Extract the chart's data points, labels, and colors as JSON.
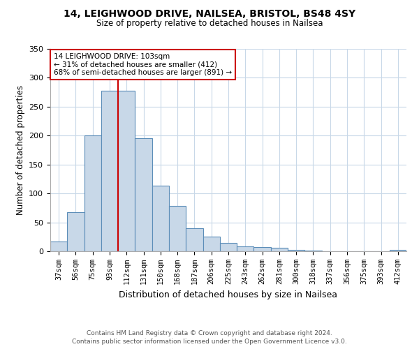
{
  "title1": "14, LEIGHWOOD DRIVE, NAILSEA, BRISTOL, BS48 4SY",
  "title2": "Size of property relative to detached houses in Nailsea",
  "xlabel": "Distribution of detached houses by size in Nailsea",
  "ylabel": "Number of detached properties",
  "categories": [
    "37sqm",
    "56sqm",
    "75sqm",
    "93sqm",
    "112sqm",
    "131sqm",
    "150sqm",
    "168sqm",
    "187sqm",
    "206sqm",
    "225sqm",
    "243sqm",
    "262sqm",
    "281sqm",
    "300sqm",
    "318sqm",
    "337sqm",
    "356sqm",
    "375sqm",
    "393sqm",
    "412sqm"
  ],
  "values": [
    17,
    68,
    200,
    277,
    277,
    195,
    113,
    78,
    40,
    25,
    14,
    9,
    7,
    6,
    3,
    1,
    0,
    0,
    0,
    0,
    3
  ],
  "bar_color": "#c8d8e8",
  "bar_edge_color": "#5b8db8",
  "marker_bin_index": 3,
  "marker_color": "#cc0000",
  "annotation_text": "14 LEIGHWOOD DRIVE: 103sqm\n← 31% of detached houses are smaller (412)\n68% of semi-detached houses are larger (891) →",
  "annotation_box_color": "#ffffff",
  "annotation_box_edge": "#cc0000",
  "ylim": [
    0,
    350
  ],
  "yticks": [
    0,
    50,
    100,
    150,
    200,
    250,
    300,
    350
  ],
  "footer_line1": "Contains HM Land Registry data © Crown copyright and database right 2024.",
  "footer_line2": "Contains public sector information licensed under the Open Government Licence v3.0.",
  "bg_color": "#ffffff",
  "grid_color": "#c8d8e8"
}
